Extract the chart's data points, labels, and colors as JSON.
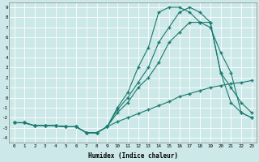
{
  "background_color": "#cce8e8",
  "grid_color": "#b8d8d8",
  "line_color": "#1a7a6e",
  "xlabel": "Humidex (Indice chaleur)",
  "xlim": [
    -0.5,
    23.5
  ],
  "ylim": [
    -4.5,
    9.5
  ],
  "xticks": [
    0,
    1,
    2,
    3,
    4,
    5,
    6,
    7,
    8,
    9,
    10,
    11,
    12,
    13,
    14,
    15,
    16,
    17,
    18,
    19,
    20,
    21,
    22,
    23
  ],
  "yticks": [
    -4,
    -3,
    -2,
    -1,
    0,
    1,
    2,
    3,
    4,
    5,
    6,
    7,
    8,
    9
  ],
  "s1_x": [
    0,
    1,
    2,
    3,
    4,
    5,
    6,
    7,
    8,
    9,
    10,
    11,
    12,
    13,
    14,
    15,
    16,
    17,
    18,
    19,
    20,
    21,
    22,
    23
  ],
  "s1_y": [
    -2.5,
    -2.5,
    -2.8,
    -2.8,
    -2.8,
    -2.9,
    -2.9,
    -3.5,
    -3.5,
    -2.9,
    -2.4,
    -2.0,
    -1.6,
    -1.2,
    -0.8,
    -0.4,
    0.1,
    0.4,
    0.7,
    1.0,
    1.2,
    1.4,
    1.5,
    1.7
  ],
  "s2_x": [
    0,
    1,
    2,
    3,
    4,
    5,
    6,
    7,
    8,
    9,
    10,
    11,
    12,
    13,
    14,
    15,
    16,
    17,
    18,
    19,
    20,
    21,
    22,
    23
  ],
  "s2_y": [
    -2.5,
    -2.5,
    -2.8,
    -2.8,
    -2.8,
    -2.9,
    -2.9,
    -3.5,
    -3.5,
    -2.9,
    -1.5,
    -0.5,
    1.0,
    2.0,
    3.5,
    5.5,
    6.5,
    7.5,
    7.5,
    7.0,
    4.5,
    2.5,
    -1.5,
    -2.0
  ],
  "s3_x": [
    0,
    1,
    2,
    3,
    4,
    5,
    6,
    7,
    8,
    9,
    10,
    11,
    12,
    13,
    14,
    15,
    16,
    17,
    18,
    19,
    20,
    21,
    22,
    23
  ],
  "s3_y": [
    -2.5,
    -2.5,
    -2.8,
    -2.8,
    -2.8,
    -2.9,
    -2.9,
    -3.5,
    -3.5,
    -2.9,
    -1.0,
    0.5,
    3.0,
    5.0,
    8.5,
    9.0,
    9.0,
    8.5,
    7.5,
    7.5,
    2.5,
    -0.5,
    -1.5,
    -2.0
  ],
  "s4_x": [
    0,
    1,
    2,
    3,
    4,
    5,
    6,
    7,
    8,
    9,
    10,
    11,
    12,
    13,
    14,
    15,
    16,
    17,
    18,
    19,
    20,
    21,
    22,
    23
  ],
  "s4_y": [
    -2.5,
    -2.5,
    -2.8,
    -2.8,
    -2.8,
    -2.9,
    -2.9,
    -3.5,
    -3.5,
    -2.9,
    -1.2,
    0.0,
    1.5,
    3.0,
    5.5,
    7.0,
    8.5,
    9.0,
    8.5,
    7.5,
    2.5,
    1.0,
    -0.5,
    -1.5
  ]
}
